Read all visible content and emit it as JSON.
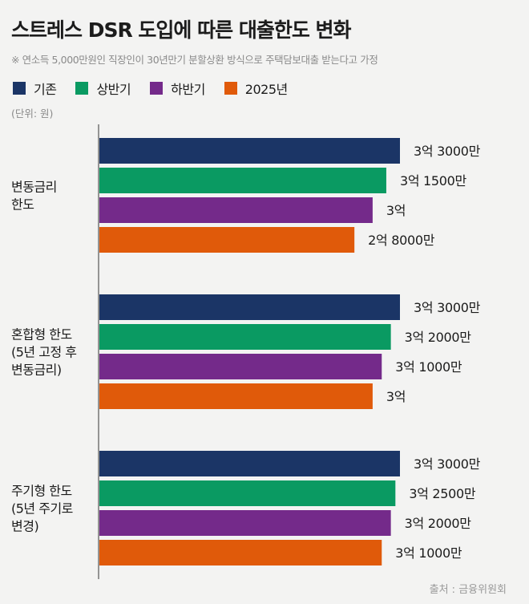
{
  "title": "스트레스 DSR 도입에 따른 대출한도 변화",
  "note": "※ 연소득 5,000만원인 직장인이 30년만기 분할상환 방식으로 주택담보대출 받는다고 가정",
  "unit": "(단위: 원)",
  "source": "출처 : 금융위원회",
  "colors": {
    "series": [
      "#1b3566",
      "#0a9a62",
      "#742a8a",
      "#e05a0a"
    ],
    "axis": "#555555",
    "background": "#f3f3f2"
  },
  "chart_data": {
    "type": "bar",
    "orientation": "horizontal",
    "categories": [
      [
        "변동금리",
        "한도"
      ],
      [
        "혼합형 한도",
        "(5년 고정 후",
        "변동금리)"
      ],
      [
        "주기형 한도",
        "(5년 주기로",
        "변경)"
      ]
    ],
    "series": [
      {
        "name": "기존",
        "values": [
          330000000,
          330000000,
          330000000
        ],
        "labels": [
          "3억 3000만",
          "3억 3000만",
          "3억 3000만"
        ]
      },
      {
        "name": "상반기",
        "values": [
          315000000,
          320000000,
          325000000
        ],
        "labels": [
          "3억 1500만",
          "3억 2000만",
          "3억 2500만"
        ]
      },
      {
        "name": "하반기",
        "values": [
          300000000,
          310000000,
          320000000
        ],
        "labels": [
          "3억",
          "3억 1000만",
          "3억 2000만"
        ]
      },
      {
        "name": "2025년",
        "values": [
          280000000,
          300000000,
          310000000
        ],
        "labels": [
          "2억 8000만",
          "3억",
          "3억 1000만"
        ]
      }
    ],
    "xlim": [
      0,
      330000000
    ],
    "grid": false,
    "legend": "top-left"
  }
}
